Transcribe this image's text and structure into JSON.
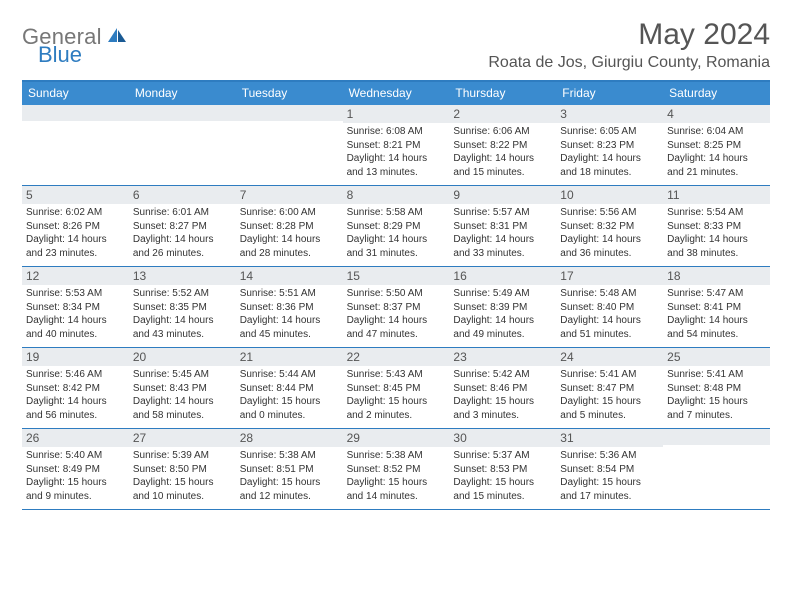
{
  "logo": {
    "general": "General",
    "blue": "Blue"
  },
  "title": "May 2024",
  "location": "Roata de Jos, Giurgiu County, Romania",
  "day_headers": [
    "Sunday",
    "Monday",
    "Tuesday",
    "Wednesday",
    "Thursday",
    "Friday",
    "Saturday"
  ],
  "colors": {
    "accent": "#3a8bcf",
    "border": "#2e7cc0",
    "daynum_bg": "#e9ecef",
    "text_muted": "#555"
  },
  "weeks": [
    [
      {
        "n": "",
        "lines": []
      },
      {
        "n": "",
        "lines": []
      },
      {
        "n": "",
        "lines": []
      },
      {
        "n": "1",
        "lines": [
          "Sunrise: 6:08 AM",
          "Sunset: 8:21 PM",
          "Daylight: 14 hours",
          "and 13 minutes."
        ]
      },
      {
        "n": "2",
        "lines": [
          "Sunrise: 6:06 AM",
          "Sunset: 8:22 PM",
          "Daylight: 14 hours",
          "and 15 minutes."
        ]
      },
      {
        "n": "3",
        "lines": [
          "Sunrise: 6:05 AM",
          "Sunset: 8:23 PM",
          "Daylight: 14 hours",
          "and 18 minutes."
        ]
      },
      {
        "n": "4",
        "lines": [
          "Sunrise: 6:04 AM",
          "Sunset: 8:25 PM",
          "Daylight: 14 hours",
          "and 21 minutes."
        ]
      }
    ],
    [
      {
        "n": "5",
        "lines": [
          "Sunrise: 6:02 AM",
          "Sunset: 8:26 PM",
          "Daylight: 14 hours",
          "and 23 minutes."
        ]
      },
      {
        "n": "6",
        "lines": [
          "Sunrise: 6:01 AM",
          "Sunset: 8:27 PM",
          "Daylight: 14 hours",
          "and 26 minutes."
        ]
      },
      {
        "n": "7",
        "lines": [
          "Sunrise: 6:00 AM",
          "Sunset: 8:28 PM",
          "Daylight: 14 hours",
          "and 28 minutes."
        ]
      },
      {
        "n": "8",
        "lines": [
          "Sunrise: 5:58 AM",
          "Sunset: 8:29 PM",
          "Daylight: 14 hours",
          "and 31 minutes."
        ]
      },
      {
        "n": "9",
        "lines": [
          "Sunrise: 5:57 AM",
          "Sunset: 8:31 PM",
          "Daylight: 14 hours",
          "and 33 minutes."
        ]
      },
      {
        "n": "10",
        "lines": [
          "Sunrise: 5:56 AM",
          "Sunset: 8:32 PM",
          "Daylight: 14 hours",
          "and 36 minutes."
        ]
      },
      {
        "n": "11",
        "lines": [
          "Sunrise: 5:54 AM",
          "Sunset: 8:33 PM",
          "Daylight: 14 hours",
          "and 38 minutes."
        ]
      }
    ],
    [
      {
        "n": "12",
        "lines": [
          "Sunrise: 5:53 AM",
          "Sunset: 8:34 PM",
          "Daylight: 14 hours",
          "and 40 minutes."
        ]
      },
      {
        "n": "13",
        "lines": [
          "Sunrise: 5:52 AM",
          "Sunset: 8:35 PM",
          "Daylight: 14 hours",
          "and 43 minutes."
        ]
      },
      {
        "n": "14",
        "lines": [
          "Sunrise: 5:51 AM",
          "Sunset: 8:36 PM",
          "Daylight: 14 hours",
          "and 45 minutes."
        ]
      },
      {
        "n": "15",
        "lines": [
          "Sunrise: 5:50 AM",
          "Sunset: 8:37 PM",
          "Daylight: 14 hours",
          "and 47 minutes."
        ]
      },
      {
        "n": "16",
        "lines": [
          "Sunrise: 5:49 AM",
          "Sunset: 8:39 PM",
          "Daylight: 14 hours",
          "and 49 minutes."
        ]
      },
      {
        "n": "17",
        "lines": [
          "Sunrise: 5:48 AM",
          "Sunset: 8:40 PM",
          "Daylight: 14 hours",
          "and 51 minutes."
        ]
      },
      {
        "n": "18",
        "lines": [
          "Sunrise: 5:47 AM",
          "Sunset: 8:41 PM",
          "Daylight: 14 hours",
          "and 54 minutes."
        ]
      }
    ],
    [
      {
        "n": "19",
        "lines": [
          "Sunrise: 5:46 AM",
          "Sunset: 8:42 PM",
          "Daylight: 14 hours",
          "and 56 minutes."
        ]
      },
      {
        "n": "20",
        "lines": [
          "Sunrise: 5:45 AM",
          "Sunset: 8:43 PM",
          "Daylight: 14 hours",
          "and 58 minutes."
        ]
      },
      {
        "n": "21",
        "lines": [
          "Sunrise: 5:44 AM",
          "Sunset: 8:44 PM",
          "Daylight: 15 hours",
          "and 0 minutes."
        ]
      },
      {
        "n": "22",
        "lines": [
          "Sunrise: 5:43 AM",
          "Sunset: 8:45 PM",
          "Daylight: 15 hours",
          "and 2 minutes."
        ]
      },
      {
        "n": "23",
        "lines": [
          "Sunrise: 5:42 AM",
          "Sunset: 8:46 PM",
          "Daylight: 15 hours",
          "and 3 minutes."
        ]
      },
      {
        "n": "24",
        "lines": [
          "Sunrise: 5:41 AM",
          "Sunset: 8:47 PM",
          "Daylight: 15 hours",
          "and 5 minutes."
        ]
      },
      {
        "n": "25",
        "lines": [
          "Sunrise: 5:41 AM",
          "Sunset: 8:48 PM",
          "Daylight: 15 hours",
          "and 7 minutes."
        ]
      }
    ],
    [
      {
        "n": "26",
        "lines": [
          "Sunrise: 5:40 AM",
          "Sunset: 8:49 PM",
          "Daylight: 15 hours",
          "and 9 minutes."
        ]
      },
      {
        "n": "27",
        "lines": [
          "Sunrise: 5:39 AM",
          "Sunset: 8:50 PM",
          "Daylight: 15 hours",
          "and 10 minutes."
        ]
      },
      {
        "n": "28",
        "lines": [
          "Sunrise: 5:38 AM",
          "Sunset: 8:51 PM",
          "Daylight: 15 hours",
          "and 12 minutes."
        ]
      },
      {
        "n": "29",
        "lines": [
          "Sunrise: 5:38 AM",
          "Sunset: 8:52 PM",
          "Daylight: 15 hours",
          "and 14 minutes."
        ]
      },
      {
        "n": "30",
        "lines": [
          "Sunrise: 5:37 AM",
          "Sunset: 8:53 PM",
          "Daylight: 15 hours",
          "and 15 minutes."
        ]
      },
      {
        "n": "31",
        "lines": [
          "Sunrise: 5:36 AM",
          "Sunset: 8:54 PM",
          "Daylight: 15 hours",
          "and 17 minutes."
        ]
      },
      {
        "n": "",
        "lines": []
      }
    ]
  ]
}
